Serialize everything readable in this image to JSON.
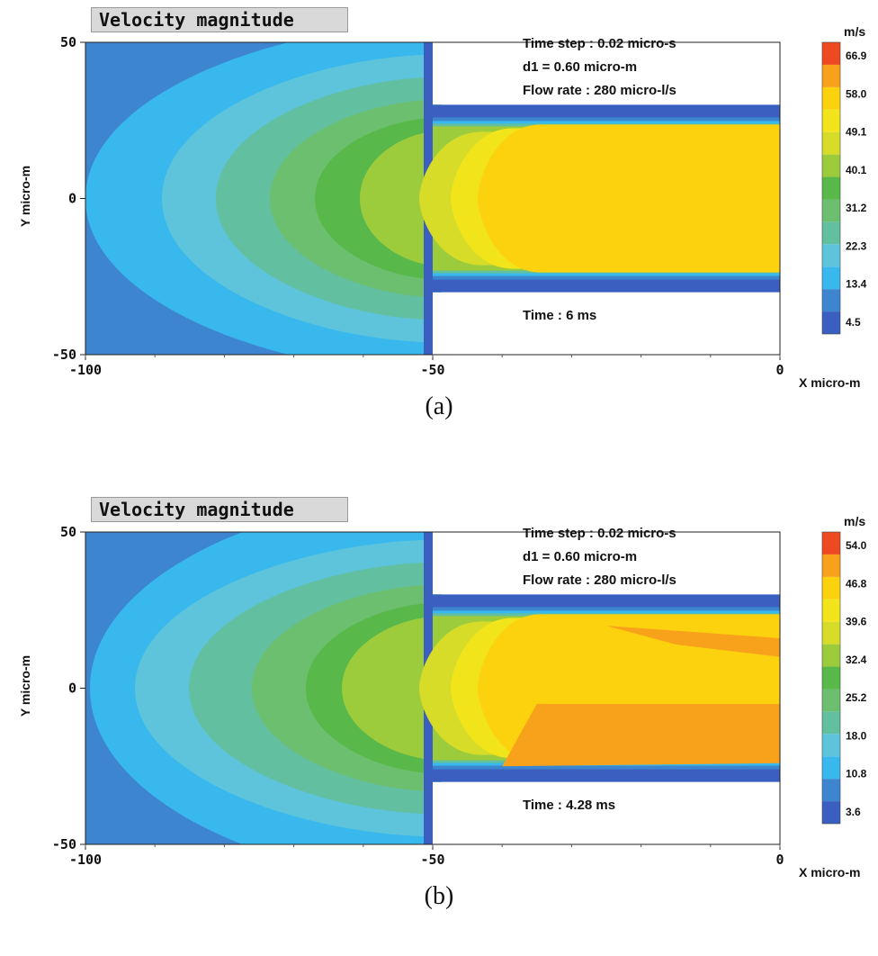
{
  "chart_data": [
    {
      "type": "heatmap",
      "panel_caption": "(a)",
      "title": "Velocity magnitude",
      "xlabel": "X micro-m",
      "ylabel": "Y micro-m",
      "xlim": [
        -100,
        0
      ],
      "ylim": [
        -50,
        50
      ],
      "x_ticks": [
        "-100",
        "-50",
        "0"
      ],
      "y_ticks": [
        "50",
        "0",
        "-50"
      ],
      "annotations": {
        "time_step": "Time step : 0.02 micro-s",
        "d1": "d1  = 0.60 micro-m",
        "flow_rate": "Flow rate :  280 micro-l/s",
        "time": "Time : 6 ms"
      },
      "colorbar": {
        "unit": "m/s",
        "tick_labels": [
          "66.9",
          "58.0",
          "49.1",
          "40.1",
          "31.2",
          "22.3",
          "13.4",
          "4.5"
        ],
        "colors": [
          "#3a5fc0",
          "#3d86cf",
          "#38b8ec",
          "#5ec4dc",
          "#62bfa0",
          "#6cbf6e",
          "#58b84a",
          "#9ccc3c",
          "#d6dc28",
          "#f2e41a",
          "#fcd20e",
          "#f8a21c",
          "#ee4a22"
        ]
      },
      "channel": {
        "inlet_y": [
          -50,
          50
        ],
        "outlet_y": [
          -30,
          30
        ],
        "contraction_x": -50
      },
      "legend_position": "right"
    },
    {
      "type": "heatmap",
      "panel_caption": "(b)",
      "title": "Velocity magnitude",
      "xlabel": "X micro-m",
      "ylabel": "Y micro-m",
      "xlim": [
        -100,
        0
      ],
      "ylim": [
        -50,
        50
      ],
      "x_ticks": [
        "-100",
        "-50",
        "0"
      ],
      "y_ticks": [
        "50",
        "0",
        "-50"
      ],
      "annotations": {
        "time_step": "Time step : 0.02 micro-s",
        "d1": "d1  = 0.60 micro-m",
        "flow_rate": "Flow rate :  280 micro-l/s",
        "time": "Time : 4.28 ms"
      },
      "colorbar": {
        "unit": "m/s",
        "tick_labels": [
          "54.0",
          "46.8",
          "39.6",
          "32.4",
          "25.2",
          "18.0",
          "10.8",
          "3.6"
        ],
        "colors": [
          "#3a5fc0",
          "#3d86cf",
          "#38b8ec",
          "#5ec4dc",
          "#62bfa0",
          "#6cbf6e",
          "#58b84a",
          "#9ccc3c",
          "#d6dc28",
          "#f2e41a",
          "#fcd20e",
          "#f8a21c",
          "#ee4a22"
        ]
      },
      "channel": {
        "inlet_y": [
          -50,
          50
        ],
        "outlet_y": [
          -30,
          30
        ],
        "contraction_x": -50
      },
      "legend_position": "right"
    }
  ]
}
